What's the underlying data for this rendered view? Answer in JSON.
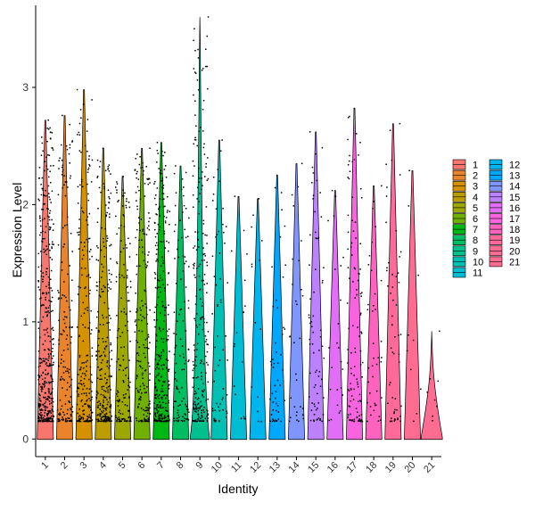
{
  "chart_data": {
    "type": "violin",
    "title": "",
    "xlabel": "Identity",
    "ylabel": "Expression Level",
    "ylim": [
      -0.15,
      3.7
    ],
    "yticks": [
      0,
      1,
      2,
      3
    ],
    "categories": [
      "1",
      "2",
      "3",
      "4",
      "5",
      "6",
      "7",
      "8",
      "9",
      "10",
      "11",
      "12",
      "13",
      "14",
      "15",
      "16",
      "17",
      "18",
      "19",
      "20",
      "21"
    ],
    "colors": [
      "#F8766D",
      "#E9842C",
      "#D69100",
      "#BC9D00",
      "#9CA700",
      "#6FB000",
      "#00B813",
      "#00BD61",
      "#00C08E",
      "#00C0B4",
      "#00BDD4",
      "#00B5EE",
      "#00A7FF",
      "#7F96FF",
      "#BC81FF",
      "#E26EF7",
      "#F863DF",
      "#FF62BF",
      "#FF6A9A",
      "#FF6C91",
      "#FF6C91"
    ],
    "max_values": [
      2.72,
      2.76,
      2.98,
      2.48,
      2.24,
      2.48,
      2.53,
      2.33,
      3.6,
      2.55,
      2.07,
      2.05,
      2.25,
      2.35,
      2.62,
      2.12,
      2.82,
      2.16,
      2.69,
      2.29,
      0.92
    ],
    "nonzero_cells": [
      420,
      160,
      220,
      260,
      150,
      190,
      290,
      110,
      230,
      60,
      18,
      14,
      50,
      30,
      70,
      24,
      110,
      40,
      55,
      10,
      8
    ],
    "violin_widths": [
      0.02,
      0.02,
      0.02,
      0.02,
      0.02,
      0.02,
      0.02,
      0.02,
      0.5,
      0.02,
      0.02,
      0.02,
      0.02,
      0.02,
      0.02,
      0.02,
      0.02,
      0.02,
      0.02,
      0.02,
      0.55
    ],
    "legend": {
      "position": "right",
      "entries": [
        "1",
        "2",
        "3",
        "4",
        "5",
        "6",
        "7",
        "8",
        "9",
        "10",
        "11",
        "12",
        "13",
        "14",
        "15",
        "16",
        "17",
        "18",
        "19",
        "20",
        "21"
      ]
    },
    "grid": false
  }
}
